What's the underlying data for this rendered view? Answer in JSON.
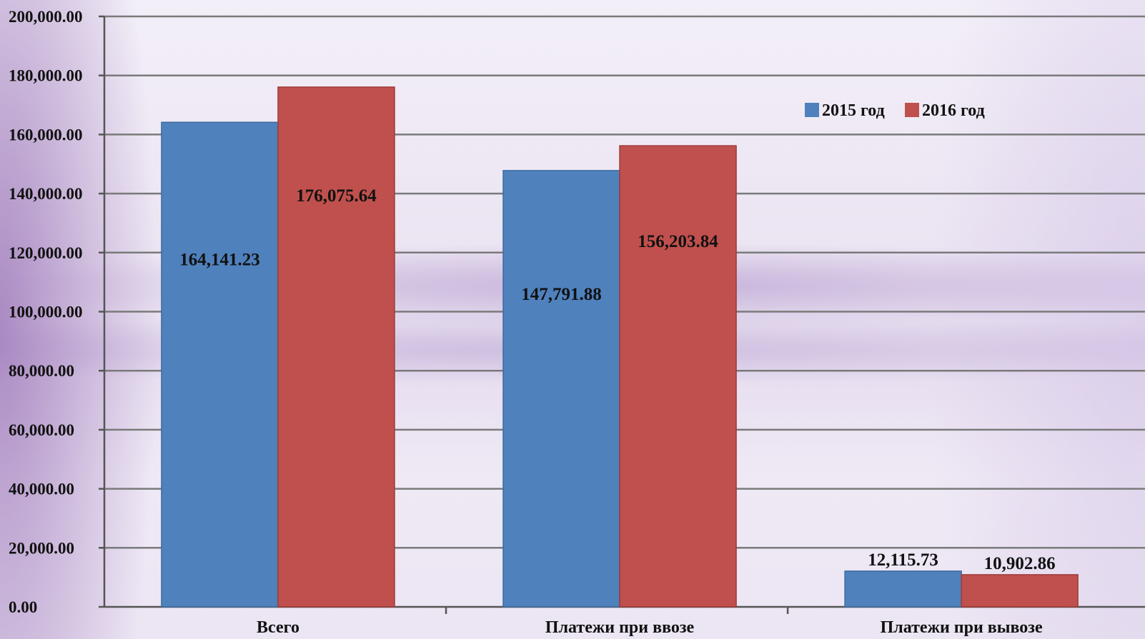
{
  "chart_data": {
    "type": "bar",
    "title": "",
    "xlabel": "",
    "ylabel": "",
    "categories": [
      "Всего",
      "Платежи при ввозе",
      "Платежи при вывозе"
    ],
    "series": [
      {
        "name": "2015 год",
        "color": "#4f81bd",
        "values": [
          164141.23,
          147791.88,
          12115.73
        ],
        "labels": [
          "164,141.23",
          "147,791.88",
          "12,115.73"
        ]
      },
      {
        "name": "2016 год",
        "color": "#c0504d",
        "values": [
          176075.64,
          156203.84,
          10902.86
        ],
        "labels": [
          "176,075.64",
          "156,203.84",
          "10,902.86"
        ]
      }
    ],
    "ylim": [
      0,
      200000
    ],
    "yticks": [
      "0.00",
      "20,000.00",
      "40,000.00",
      "60,000.00",
      "80,000.00",
      "100,000.00",
      "120,000.00",
      "140,000.00",
      "160,000.00",
      "180,000.00",
      "200,000.00"
    ],
    "grid": true,
    "legend_position": "top-right"
  }
}
